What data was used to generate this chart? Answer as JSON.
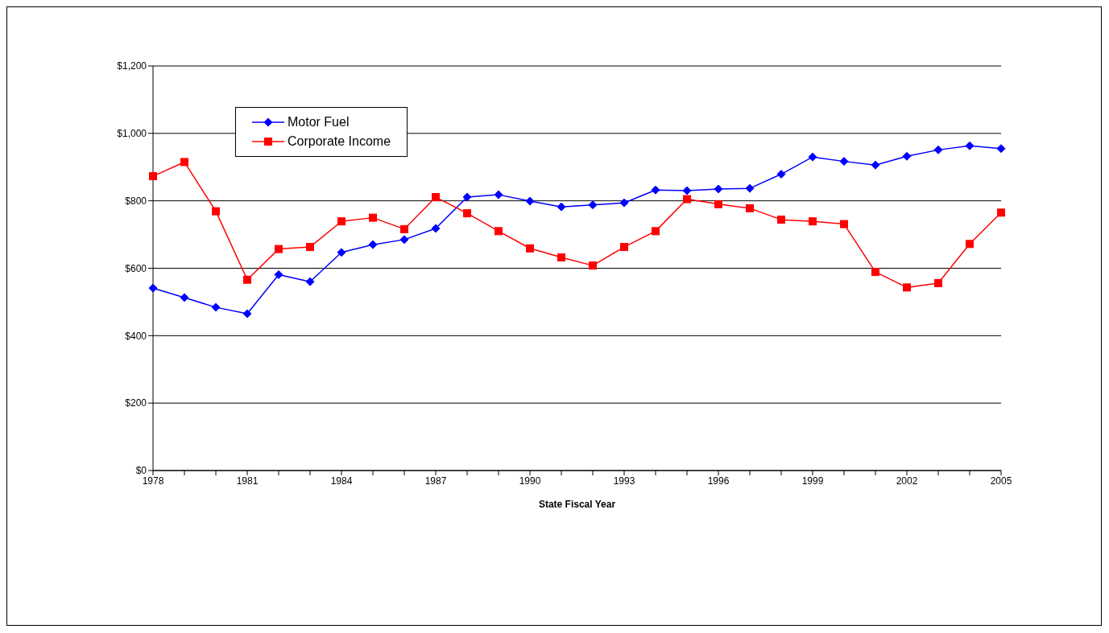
{
  "chart_data": {
    "type": "line",
    "xlabel": "State Fiscal Year",
    "categories": [
      "1978",
      null,
      null,
      "1981",
      null,
      null,
      "1984",
      null,
      null,
      "1987",
      null,
      null,
      "1990",
      null,
      null,
      "1993",
      null,
      null,
      "1996",
      null,
      null,
      "1999",
      null,
      null,
      "2002",
      null,
      null,
      "2005"
    ],
    "ylim": [
      0,
      1200
    ],
    "yticks": [
      {
        "value": 0,
        "label": "$0"
      },
      {
        "value": 200,
        "label": "$200"
      },
      {
        "value": 400,
        "label": "$400"
      },
      {
        "value": 600,
        "label": "$600"
      },
      {
        "value": 800,
        "label": "$800"
      },
      {
        "value": 1000,
        "label": "$1,000"
      },
      {
        "value": 1200,
        "label": "$1,200"
      }
    ],
    "grid": "y",
    "legend": "top left",
    "series": [
      {
        "name": "Motor Fuel",
        "color": "#0000ff",
        "marker": "diamond",
        "values": [
          541,
          513,
          484,
          465,
          581,
          560,
          647,
          670,
          685,
          718,
          811,
          818,
          799,
          782,
          788,
          794,
          832,
          830,
          835,
          837,
          879,
          930,
          917,
          906,
          932,
          951,
          963,
          955
        ]
      },
      {
        "name": "Corporate Income",
        "color": "#ff0000",
        "marker": "square",
        "values": [
          873,
          915,
          769,
          566,
          657,
          663,
          739,
          750,
          716,
          811,
          763,
          710,
          659,
          632,
          608,
          663,
          710,
          805,
          790,
          778,
          744,
          739,
          731,
          589,
          543,
          556,
          672,
          765
        ]
      }
    ]
  }
}
